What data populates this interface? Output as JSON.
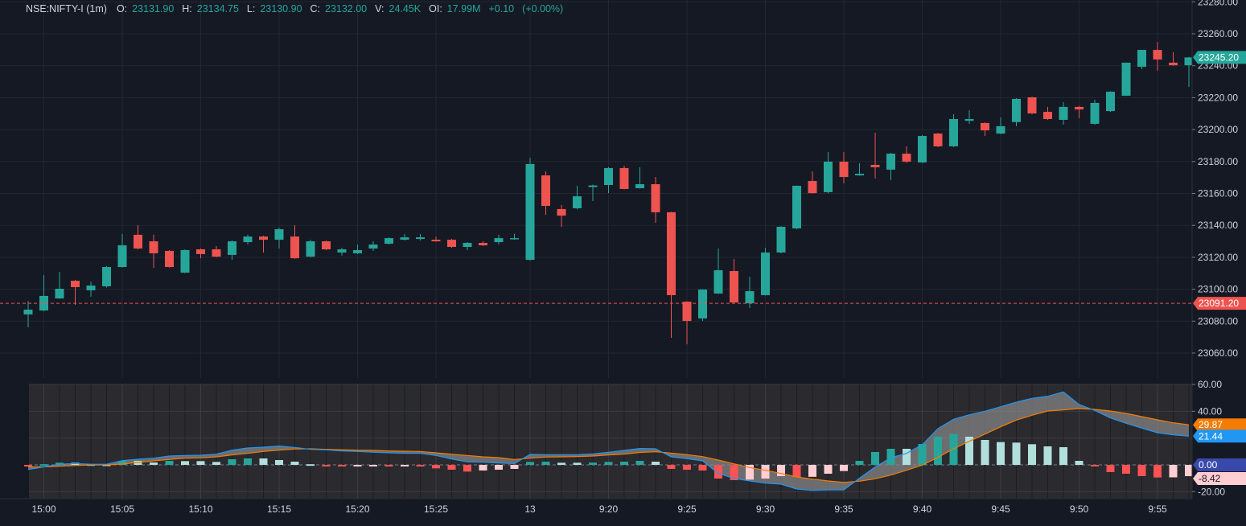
{
  "legend": {
    "symbol": "NSE:NIFTY-I (1m)",
    "o_label": "O:",
    "o": "23131.90",
    "h_label": "H:",
    "h": "23134.75",
    "l_label": "L:",
    "l": "23130.90",
    "c_label": "C:",
    "c": "23132.00",
    "v_label": "V:",
    "v": "24.45K",
    "oi_label": "OI:",
    "oi": "17.99M",
    "change": "+0.10",
    "change_pct": "(+0.00%)"
  },
  "colors": {
    "background": "#151924",
    "grid": "#232733",
    "up": "#26a69a",
    "down": "#ef5350",
    "macd_line": "#2196f3",
    "signal_line": "#f57c00",
    "hist_up_strong": "#26a69a",
    "hist_up_weak": "#b2dfdb",
    "hist_down_strong": "#ff5252",
    "hist_down_weak": "#ffcdd2",
    "zero_tag": "#3949ab",
    "indicator_pane_bg": "#2a2a2f"
  },
  "chart_data": [
    {
      "type": "candlestick",
      "ylim": [
        23050,
        23285
      ],
      "grid": true,
      "price_axis_labels": [
        "23060.00",
        "23080.00",
        "23100.00",
        "23120.00",
        "23140.00",
        "23160.00",
        "23180.00",
        "23200.00",
        "23220.00",
        "23240.00",
        "23260.00",
        "23280.00"
      ],
      "time_axis_labels": [
        {
          "label": "15:00",
          "time": "15:00"
        },
        {
          "label": "15:05",
          "time": "15:05"
        },
        {
          "label": "15:10",
          "time": "15:10"
        },
        {
          "label": "15:15",
          "time": "15:15"
        },
        {
          "label": "15:20",
          "time": "15:20"
        },
        {
          "label": "15:25",
          "time": "15:25"
        },
        {
          "label": "13",
          "time": "09:15"
        },
        {
          "label": "9:20",
          "time": "09:20"
        },
        {
          "label": "9:25",
          "time": "09:25"
        },
        {
          "label": "9:30",
          "time": "09:30"
        },
        {
          "label": "9:35",
          "time": "09:35"
        },
        {
          "label": "9:40",
          "time": "09:40"
        },
        {
          "label": "9:45",
          "time": "09:45"
        },
        {
          "label": "9:50",
          "time": "09:50"
        },
        {
          "label": "9:55",
          "time": "09:55"
        }
      ],
      "last_price": {
        "value": 23245.2,
        "label": "23245.20"
      },
      "reference_line": {
        "value": 23091.2,
        "label": "23091.20"
      },
      "columns": [
        "time",
        "open",
        "high",
        "low",
        "close"
      ],
      "candles": [
        [
          "14:59",
          23084.2,
          23092.7,
          23076.1,
          23087.2
        ],
        [
          "15:00",
          23086.7,
          23108.9,
          23086.2,
          23095.8
        ],
        [
          "15:01",
          23094.2,
          23110.9,
          23094.0,
          23100.3
        ],
        [
          "15:02",
          23105.3,
          23105.8,
          23090.2,
          23101.3
        ],
        [
          "15:03",
          23099.3,
          23104.8,
          23095.3,
          23102.3
        ],
        [
          "15:04",
          23101.8,
          23114.5,
          23101.0,
          23113.9
        ],
        [
          "15:05",
          23113.9,
          23134.6,
          23113.5,
          23127.5
        ],
        [
          "15:06",
          23134.1,
          23140.1,
          23125.0,
          23125.5
        ],
        [
          "15:07",
          23130.0,
          23134.1,
          23113.4,
          23122.5
        ],
        [
          "15:08",
          23124.0,
          23124.5,
          23113.5,
          23113.9
        ],
        [
          "15:09",
          23110.4,
          23125.0,
          23110.0,
          23124.5
        ],
        [
          "15:10",
          23125.0,
          23125.5,
          23119.4,
          23122.0
        ],
        [
          "15:11",
          23125.0,
          23127.0,
          23120.0,
          23120.4
        ],
        [
          "15:12",
          23121.5,
          23130.5,
          23118.4,
          23130.0
        ],
        [
          "15:13",
          23129.5,
          23134.1,
          23128.0,
          23133.0
        ],
        [
          "15:14",
          23133.0,
          23133.5,
          23123.0,
          23131.0
        ],
        [
          "15:15",
          23131.0,
          23138.6,
          23125.5,
          23137.6
        ],
        [
          "15:16",
          23133.0,
          23140.1,
          23119.0,
          23119.4
        ],
        [
          "15:17",
          23120.4,
          23131.0,
          23120.0,
          23130.0
        ],
        [
          "15:18",
          23130.0,
          23130.5,
          23124.5,
          23125.0
        ],
        [
          "15:19",
          23123.0,
          23126.0,
          23121.0,
          23125.0
        ],
        [
          "15:20",
          23122.5,
          23128.0,
          23122.0,
          23124.5
        ],
        [
          "15:21",
          23125.5,
          23130.0,
          23124.0,
          23128.0
        ],
        [
          "15:22",
          23128.5,
          23132.5,
          23128.0,
          23132.0
        ],
        [
          "15:23",
          23131.0,
          23134.6,
          23130.5,
          23132.5
        ],
        [
          "15:24",
          23131.5,
          23134.6,
          23130.5,
          23132.5
        ],
        [
          "15:25",
          23131.0,
          23133.0,
          23129.8,
          23130.0
        ],
        [
          "15:26",
          23131.0,
          23131.5,
          23126.0,
          23126.5
        ],
        [
          "15:27",
          23126.5,
          23129.5,
          23124.5,
          23129.0
        ],
        [
          "15:28",
          23129.0,
          23130.0,
          23127.0,
          23127.5
        ],
        [
          "15:29",
          23129.5,
          23134.1,
          23128.0,
          23132.0
        ],
        [
          "15:30",
          23131.9,
          23134.75,
          23130.9,
          23132.0
        ],
        [
          "09:15",
          23118.4,
          23182.4,
          23118.0,
          23178.4
        ],
        [
          "09:16",
          23171.3,
          23173.8,
          23146.6,
          23152.2
        ],
        [
          "09:17",
          23150.2,
          23152.7,
          23139.1,
          23146.1
        ],
        [
          "09:18",
          23150.7,
          23164.8,
          23150.0,
          23158.2
        ],
        [
          "09:19",
          23164.0,
          23165.5,
          23155.2,
          23165.0
        ],
        [
          "09:20",
          23165.3,
          23176.5,
          23160.2,
          23175.9
        ],
        [
          "09:21",
          23175.9,
          23177.4,
          23162.5,
          23162.8
        ],
        [
          "09:22",
          23163.3,
          23176.4,
          23163.0,
          23165.8
        ],
        [
          "09:23",
          23165.8,
          23170.3,
          23141.6,
          23148.2
        ],
        [
          "09:24",
          23148.2,
          23148.5,
          23069.6,
          23096.3
        ],
        [
          "09:25",
          23092.2,
          23092.5,
          23065.5,
          23080.1
        ],
        [
          "09:26",
          23081.7,
          23100.0,
          23080.1,
          23099.8
        ],
        [
          "09:27",
          23097.3,
          23125.5,
          23097.0,
          23111.9
        ],
        [
          "09:28",
          23111.4,
          23118.9,
          23091.5,
          23091.7
        ],
        [
          "09:29",
          23091.2,
          23107.9,
          23088.2,
          23098.8
        ],
        [
          "09:30",
          23096.3,
          23126.0,
          23096.0,
          23123.0
        ],
        [
          "09:31",
          23123.0,
          23139.5,
          23122.5,
          23139.1
        ],
        [
          "09:32",
          23138.1,
          23165.0,
          23137.6,
          23164.8
        ],
        [
          "09:33",
          23167.8,
          23173.8,
          23159.8,
          23160.2
        ],
        [
          "09:34",
          23160.8,
          23186.0,
          23160.0,
          23179.9
        ],
        [
          "09:35",
          23179.9,
          23186.0,
          23166.3,
          23170.3
        ],
        [
          "09:36",
          23171.3,
          23178.9,
          23171.0,
          23172.3
        ],
        [
          "09:37",
          23177.9,
          23198.0,
          23169.3,
          23176.4
        ],
        [
          "09:38",
          23174.9,
          23185.5,
          23168.3,
          23184.9
        ],
        [
          "09:39",
          23184.9,
          23189.5,
          23179.0,
          23179.9
        ],
        [
          "09:40",
          23179.4,
          23196.5,
          23179.0,
          23196.0
        ],
        [
          "09:41",
          23197.5,
          23198.0,
          23189.0,
          23189.5
        ],
        [
          "09:42",
          23189.5,
          23209.6,
          23189.0,
          23206.6
        ],
        [
          "09:43",
          23205.5,
          23212.1,
          23203.6,
          23206.6
        ],
        [
          "09:44",
          23204.1,
          23204.5,
          23196.0,
          23199.5
        ],
        [
          "09:45",
          23197.5,
          23207.6,
          23197.0,
          23202.1
        ],
        [
          "09:46",
          23204.7,
          23219.7,
          23202.1,
          23219.2
        ],
        [
          "09:47",
          23220.2,
          23220.5,
          23209.6,
          23210.1
        ],
        [
          "09:48",
          23211.1,
          23214.2,
          23206.1,
          23206.6
        ],
        [
          "09:49",
          23206.1,
          23217.2,
          23203.1,
          23214.2
        ],
        [
          "09:50",
          23214.2,
          23214.7,
          23207.1,
          23212.6
        ],
        [
          "09:51",
          23203.6,
          23218.7,
          23203.0,
          23216.7
        ],
        [
          "09:52",
          23211.6,
          23224.0,
          23211.0,
          23223.7
        ],
        [
          "09:53",
          23221.2,
          23242.0,
          23221.0,
          23241.9
        ],
        [
          "09:54",
          23239.3,
          23250.0,
          23237.8,
          23249.9
        ],
        [
          "09:55",
          23249.9,
          23254.9,
          23236.8,
          23243.9
        ],
        [
          "09:56",
          23241.9,
          23248.4,
          23240.0,
          23240.3
        ],
        [
          "09:57",
          23240.3,
          23245.5,
          23226.7,
          23245.2
        ]
      ]
    },
    {
      "type": "macd",
      "ylim": [
        -25,
        60
      ],
      "grid": true,
      "axis_labels": [
        "60.00",
        "40.00",
        "-20.00"
      ],
      "axis_label_values": [
        60,
        40,
        -20
      ],
      "tags": {
        "signal": "29.87",
        "macd": "21.44",
        "zero": "0.00",
        "histogram": "-8.42"
      },
      "macd": [
        -3.5,
        -1.5,
        0.5,
        1,
        0.5,
        0.5,
        3.2,
        4.2,
        5,
        6.6,
        7,
        7.2,
        8,
        11,
        12.6,
        13.2,
        14,
        13,
        11.6,
        11.2,
        10.4,
        10,
        9.4,
        9,
        8.6,
        8.6,
        7,
        4.4,
        2.2,
        2,
        1.4,
        1,
        7.8,
        7.6,
        7.6,
        7.6,
        8.2,
        9.4,
        10.8,
        12.2,
        12,
        6,
        4.6,
        3,
        -6.4,
        -10,
        -12,
        -13.6,
        -14.4,
        -18,
        -19,
        -18.6,
        -18.6,
        -10,
        -1.6,
        5.4,
        8.6,
        15,
        27,
        34,
        37.4,
        40,
        43.4,
        46.8,
        49.6,
        51.2,
        54.4,
        45,
        40.6,
        35,
        31,
        27.4,
        24,
        22.4,
        21.44
      ],
      "signal": [
        -1.5,
        -1.5,
        -1,
        -0.5,
        0,
        0,
        0.6,
        1.8,
        3,
        4,
        5,
        5.2,
        6,
        7.4,
        8.6,
        10,
        11,
        11.8,
        12,
        11.6,
        11.3,
        11,
        10.8,
        10.4,
        10.2,
        10,
        9,
        8,
        7,
        6,
        5.4,
        4,
        5,
        5.8,
        6,
        6.2,
        6.6,
        7.4,
        8,
        9.3,
        9.8,
        8.8,
        7.6,
        6.2,
        3.6,
        0.8,
        -2,
        -4,
        -6.4,
        -9,
        -10.6,
        -12,
        -13,
        -12.2,
        -10.4,
        -7.6,
        -4,
        -0.2,
        5.6,
        12,
        17.6,
        23,
        28.4,
        33.4,
        37,
        40.2,
        41,
        42,
        41.4,
        40.2,
        38.4,
        36,
        33.6,
        31.4,
        29.87
      ],
      "histogram": [
        -1,
        0.5,
        1.6,
        1.6,
        0.5,
        0.3,
        3,
        3,
        1.8,
        3,
        2.8,
        2.8,
        2.2,
        4.2,
        4.8,
        4.8,
        3.6,
        2.4,
        0.5,
        -0.3,
        -0.5,
        -0.5,
        -0.5,
        -0.8,
        -0.8,
        -1,
        -2.6,
        -3.6,
        -5,
        -4.2,
        -3.6,
        -3,
        2.2,
        2.4,
        1.6,
        1.6,
        1.7,
        2.2,
        2.4,
        3,
        2.4,
        -3,
        -3.6,
        -4.2,
        -10.2,
        -11.4,
        -11,
        -10.2,
        -8.4,
        -9,
        -8.9,
        -6.6,
        -4.6,
        3,
        9.6,
        12,
        12,
        15.6,
        21,
        23,
        21,
        18.6,
        17,
        16.6,
        15.4,
        13.8,
        13.2,
        3,
        -1,
        -5.4,
        -6.6,
        -8.4,
        -9.4,
        -9.3,
        -8.42
      ]
    }
  ]
}
